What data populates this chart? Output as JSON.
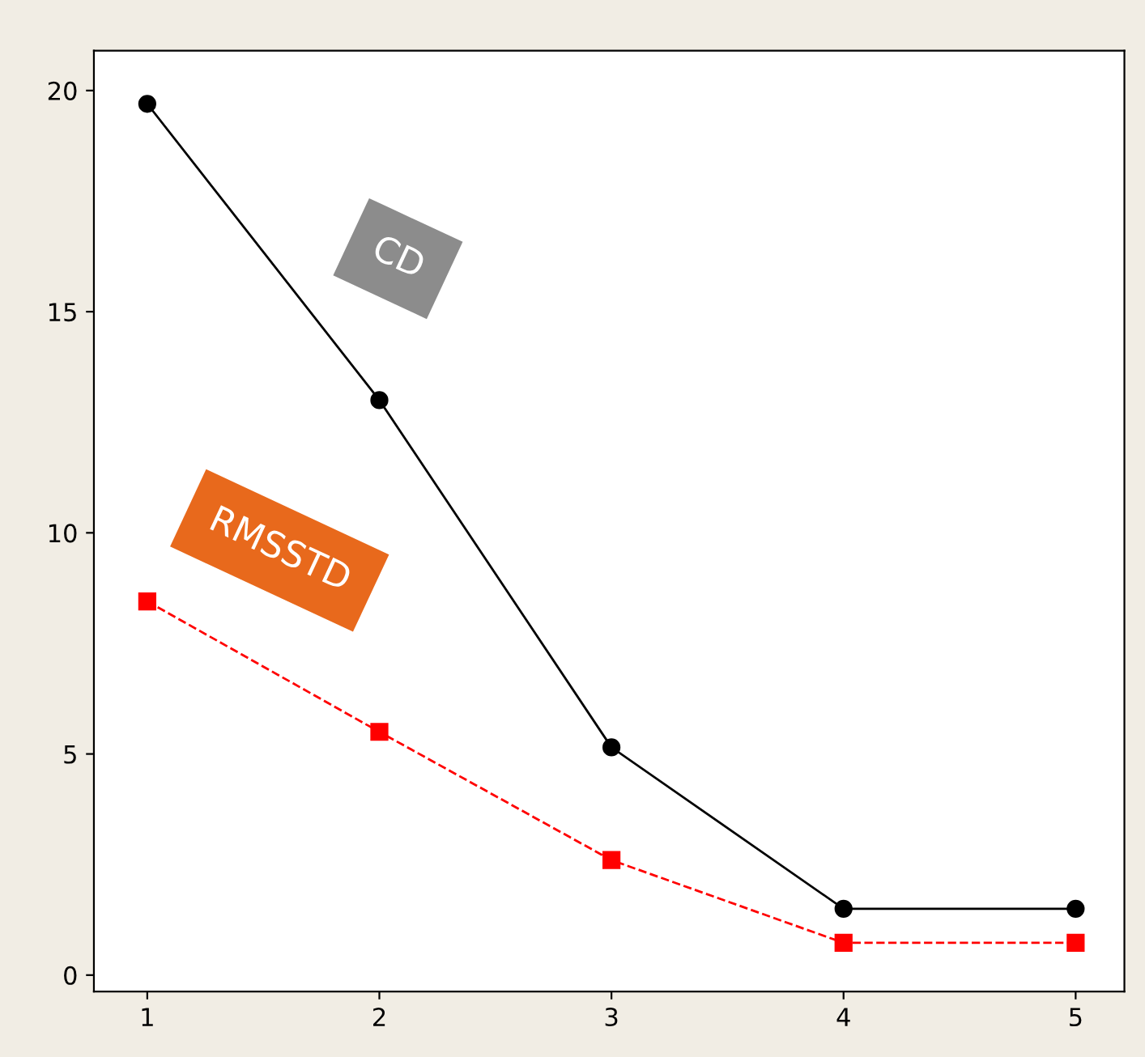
{
  "chart_data": {
    "type": "line",
    "x": [
      1,
      2,
      3,
      4,
      5
    ],
    "series": [
      {
        "name": "CD",
        "color": "#000000",
        "values": [
          19.7,
          13.0,
          5.15,
          1.5,
          1.5
        ],
        "marker": "circle",
        "line_style": "solid"
      },
      {
        "name": "RMSSTD",
        "color": "#ff0000",
        "values": [
          8.45,
          5.5,
          2.6,
          0.73,
          0.73
        ],
        "marker": "square",
        "line_style": "dashed"
      }
    ],
    "xlim": [
      0.77,
      5.21
    ],
    "xticks": [
      1,
      2,
      3,
      4,
      5
    ],
    "ylim": [
      -0.37,
      20.9
    ],
    "yticks": [
      0,
      5,
      10,
      15,
      20
    ],
    "grid": false,
    "legend": false
  }
}
